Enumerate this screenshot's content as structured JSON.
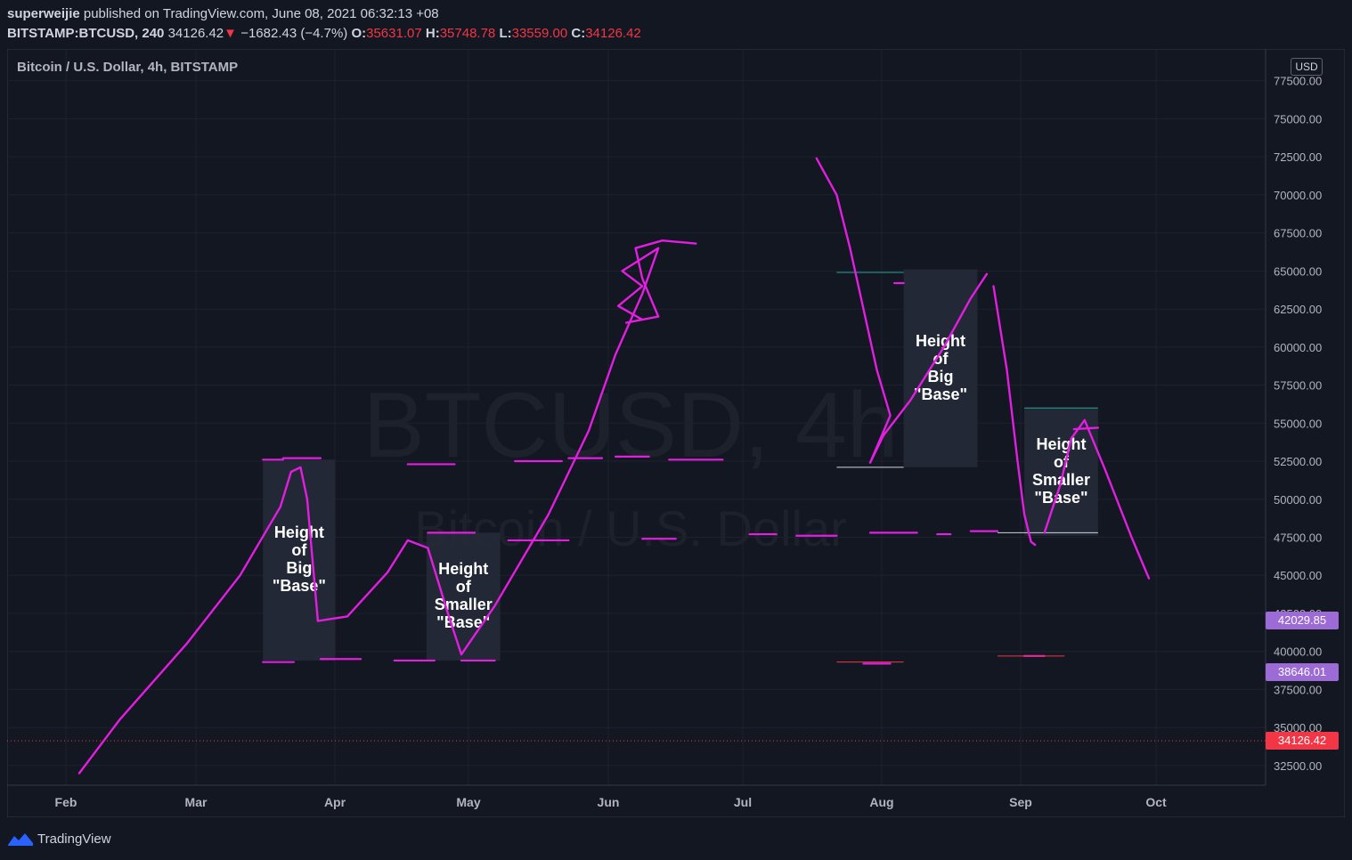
{
  "header": {
    "author": "superweijie",
    "published_text": " published on TradingView.com, June 08, 2021 06:32:13 +08",
    "symbol": "BITSTAMP:BTCUSD, 240",
    "last": "34126.42",
    "change_arrow": "▼",
    "change": "−1682.43 (−4.7%)",
    "o_label": "O:",
    "o_value": "35631.07",
    "h_label": "H:",
    "h_value": "35748.78",
    "l_label": "L:",
    "l_value": "33559.00",
    "c_label": "C:",
    "c_value": "34126.42"
  },
  "legend_title": "Bitcoin / U.S. Dollar, 4h, BITSTAMP",
  "currency": "USD",
  "watermark": {
    "line1": "BTCUSD, 4h",
    "line2": "Bitcoin / U.S. Dollar"
  },
  "price_labels": [
    {
      "value": "42029.85",
      "price": 42029.85,
      "color": "#9c6bd6"
    },
    {
      "value": "38646.01",
      "price": 38646.01,
      "color": "#9c6bd6"
    },
    {
      "value": "34126.42",
      "price": 34126.42,
      "color": "#f23645"
    }
  ],
  "footer": {
    "brand": "TradingView"
  },
  "chart_data": {
    "type": "line",
    "ylim": [
      31500,
      78300
    ],
    "y_ticks": [
      32500,
      35000,
      37500,
      40000,
      42500,
      45000,
      47500,
      50000,
      52500,
      55000,
      57500,
      60000,
      62500,
      65000,
      67500,
      70000,
      72500,
      75000,
      77500
    ],
    "x_ticks": [
      "Feb",
      "Mar",
      "Apr",
      "May",
      "Jun",
      "Jul",
      "Aug",
      "Sep",
      "Oct"
    ],
    "current_price": 34126.42,
    "annotations": [
      {
        "text": [
          "Height",
          "of",
          "Big",
          "\"Base\""
        ],
        "x_start": 6.47,
        "x_end": 7.01,
        "y_top": 52600,
        "y_bottom": 39400
      },
      {
        "text": [
          "Height",
          "of",
          "Smaller",
          "\"Base\""
        ],
        "x_start": 7.69,
        "x_end": 8.24,
        "y_top": 47800,
        "y_bottom": 39400
      },
      {
        "text": [
          "Height",
          "of",
          "Big",
          "\"Base\""
        ],
        "x_start": 11.25,
        "x_end": 11.8,
        "y_top": 65100,
        "y_bottom": 52100
      },
      {
        "text": [
          "Height",
          "of",
          "Smaller",
          "\"Base\""
        ],
        "x_start": 12.15,
        "x_end": 12.7,
        "y_top": 56000,
        "y_bottom": 47600
      }
    ],
    "drawn_path_1": {
      "x": [
        5.1,
        5.4,
        5.9,
        6.3,
        6.6,
        6.68,
        6.75,
        6.8,
        6.88,
        7.1,
        7.4,
        7.55,
        7.7,
        7.85,
        7.95,
        8.2,
        8.6,
        8.9,
        9.1,
        9.3
      ],
      "y": [
        32000,
        35500,
        40500,
        45000,
        49500,
        51800,
        52100,
        50000,
        42000,
        42300,
        45200,
        47300,
        46800,
        42500,
        39800,
        43000,
        49000,
        54500,
        59500,
        63500
      ]
    },
    "drawn_path_2": {
      "x": [
        10.6,
        10.75,
        10.85,
        10.95,
        11.05,
        11.15,
        11.0,
        11.1,
        11.3,
        11.55,
        11.75,
        11.87
      ],
      "y": [
        72400,
        70000,
        66500,
        62500,
        58500,
        55500,
        52400,
        54200,
        56500,
        60000,
        63200,
        64800
      ]
    }
  }
}
